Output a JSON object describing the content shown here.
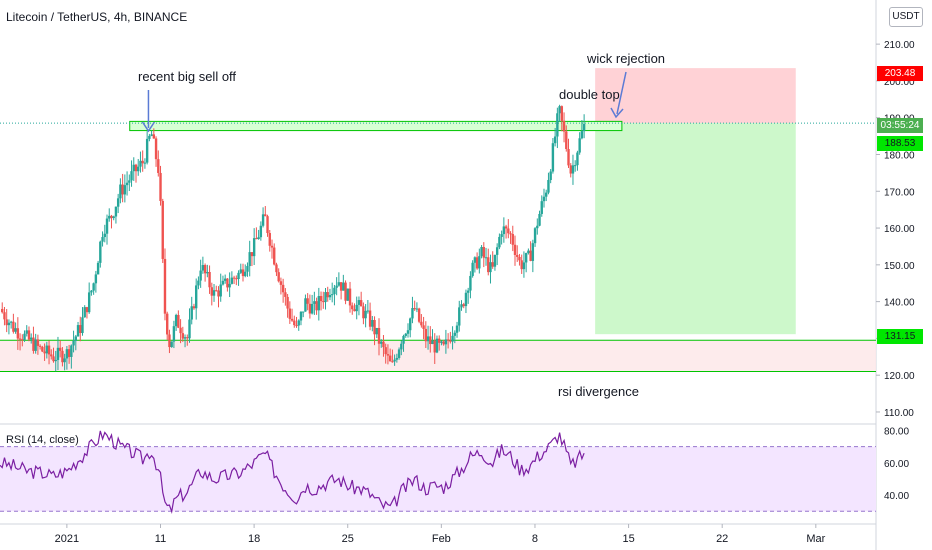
{
  "header": {
    "symbol_title": "Litecoin / TetherUS, 4h, BINANCE",
    "currency_button": "USDT"
  },
  "annotations": {
    "recent_sell_off": "recent big sell off",
    "wick_rejection": "wick rejection",
    "double_top": "double top",
    "rsi_divergence": "rsi divergence"
  },
  "rsi_panel": {
    "label": "RSI (14, close)"
  },
  "price_badges": {
    "stop": "203.48",
    "countdown": "03:55:24",
    "entry": "188.53",
    "target": "131.15"
  },
  "colors": {
    "up": "#26a69a",
    "down": "#ef5350",
    "zone_line": "#00c400",
    "stop_zone": "#ffcdd2",
    "target_zone": "#c8f7c5",
    "rsi_line": "#7b1fa2",
    "rsi_band": "#f3e5ff"
  },
  "chart_data": {
    "type": "candlestick",
    "title": "Litecoin / TetherUS, 4h, BINANCE",
    "y_axis": {
      "min": 107,
      "max": 222,
      "ticks": [
        "110.00",
        "120.00",
        "130.00",
        "140.00",
        "150.00",
        "160.00",
        "170.00",
        "180.00",
        "190.00",
        "200.00",
        "210.00"
      ]
    },
    "x_axis": {
      "ticks": [
        {
          "label": "2021",
          "x": 4.0
        },
        {
          "label": "11",
          "x": 11.0
        },
        {
          "label": "18",
          "x": 18.0
        },
        {
          "label": "25",
          "x": 25.0
        },
        {
          "label": "Feb",
          "x": 32.0
        },
        {
          "label": "8",
          "x": 39.0
        },
        {
          "label": "15",
          "x": 46.0
        },
        {
          "label": "22",
          "x": 53.0
        },
        {
          "label": "Mar",
          "x": 60.0
        }
      ],
      "range": [
        -1.0,
        64.5
      ]
    },
    "price_path": [
      [
        -1.0,
        138
      ],
      [
        0.0,
        133
      ],
      [
        1.0,
        130
      ],
      [
        2.0,
        127
      ],
      [
        3.0,
        125
      ],
      [
        4.0,
        126
      ],
      [
        5.0,
        133
      ],
      [
        6.0,
        145
      ],
      [
        6.7,
        160
      ],
      [
        7.3,
        163
      ],
      [
        8.0,
        170
      ],
      [
        9.0,
        175
      ],
      [
        9.7,
        178
      ],
      [
        10.3,
        186
      ],
      [
        10.9,
        175
      ],
      [
        11.3,
        138
      ],
      [
        11.7,
        128
      ],
      [
        12.2,
        135
      ],
      [
        13.0,
        130
      ],
      [
        14.0,
        150
      ],
      [
        15.0,
        142
      ],
      [
        16.0,
        145
      ],
      [
        17.0,
        148
      ],
      [
        18.0,
        155
      ],
      [
        18.8,
        163
      ],
      [
        19.5,
        152
      ],
      [
        20.0,
        145
      ],
      [
        20.6,
        137
      ],
      [
        21.2,
        132
      ],
      [
        21.8,
        140
      ],
      [
        22.5,
        138
      ],
      [
        23.5,
        143
      ],
      [
        24.3,
        146
      ],
      [
        25.2,
        140
      ],
      [
        26.0,
        138
      ],
      [
        26.8,
        134
      ],
      [
        27.5,
        128
      ],
      [
        28.3,
        122
      ],
      [
        29.0,
        130
      ],
      [
        30.0,
        138
      ],
      [
        30.8,
        130
      ],
      [
        31.5,
        128
      ],
      [
        32.2,
        127
      ],
      [
        32.8,
        132
      ],
      [
        33.5,
        138
      ],
      [
        34.2,
        148
      ],
      [
        35.0,
        153
      ],
      [
        35.8,
        148
      ],
      [
        36.5,
        160
      ],
      [
        37.2,
        158
      ],
      [
        37.9,
        150
      ],
      [
        38.6,
        152
      ],
      [
        39.2,
        162
      ],
      [
        39.8,
        170
      ],
      [
        40.3,
        180
      ],
      [
        40.8,
        192
      ],
      [
        41.2,
        185
      ],
      [
        41.7,
        175
      ],
      [
        42.2,
        182
      ],
      [
        42.7,
        188
      ]
    ],
    "horizontal_levels": [
      {
        "name": "resistance-zone",
        "low": 186.5,
        "high": 189.0,
        "from_x": 8.7,
        "to_x": 45.5
      },
      {
        "name": "support-line-upper",
        "value": 129.5
      },
      {
        "name": "support-line-lower",
        "value": 121.0
      }
    ],
    "trade_zones": [
      {
        "name": "stop-loss",
        "from_x": 43.5,
        "to_x": 58.5,
        "low": 188.53,
        "high": 203.48
      },
      {
        "name": "take-profit",
        "from_x": 43.5,
        "to_x": 58.5,
        "low": 131.15,
        "high": 188.53
      }
    ],
    "rsi": {
      "y_axis": {
        "min": 24,
        "max": 84,
        "ticks": [
          "40.00",
          "60.00",
          "80.00"
        ]
      },
      "bands": [
        30,
        70
      ],
      "path": [
        [
          -1.0,
          60
        ],
        [
          0.0,
          58
        ],
        [
          1.0,
          55
        ],
        [
          2.0,
          54
        ],
        [
          3.0,
          52
        ],
        [
          4.0,
          55
        ],
        [
          5.0,
          63
        ],
        [
          6.0,
          72
        ],
        [
          6.7,
          78
        ],
        [
          7.3,
          75
        ],
        [
          8.0,
          70
        ],
        [
          9.0,
          66
        ],
        [
          9.7,
          62
        ],
        [
          10.3,
          68
        ],
        [
          10.9,
          55
        ],
        [
          11.3,
          35
        ],
        [
          11.7,
          30
        ],
        [
          12.2,
          38
        ],
        [
          13.0,
          42
        ],
        [
          14.0,
          55
        ],
        [
          15.0,
          50
        ],
        [
          16.0,
          52
        ],
        [
          17.0,
          54
        ],
        [
          18.0,
          60
        ],
        [
          18.8,
          66
        ],
        [
          19.5,
          55
        ],
        [
          20.0,
          48
        ],
        [
          20.6,
          42
        ],
        [
          21.2,
          38
        ],
        [
          21.8,
          46
        ],
        [
          22.5,
          44
        ],
        [
          23.5,
          48
        ],
        [
          24.3,
          50
        ],
        [
          25.2,
          45
        ],
        [
          26.0,
          44
        ],
        [
          26.8,
          40
        ],
        [
          27.5,
          34
        ],
        [
          28.3,
          32
        ],
        [
          29.0,
          42
        ],
        [
          30.0,
          50
        ],
        [
          30.8,
          44
        ],
        [
          31.5,
          46
        ],
        [
          32.2,
          45
        ],
        [
          32.8,
          50
        ],
        [
          33.5,
          56
        ],
        [
          34.2,
          64
        ],
        [
          35.0,
          67
        ],
        [
          35.8,
          60
        ],
        [
          36.5,
          68
        ],
        [
          37.2,
          64
        ],
        [
          37.9,
          56
        ],
        [
          38.6,
          58
        ],
        [
          39.2,
          64
        ],
        [
          39.8,
          68
        ],
        [
          40.3,
          72
        ],
        [
          40.8,
          78
        ],
        [
          41.2,
          70
        ],
        [
          41.7,
          58
        ],
        [
          42.2,
          62
        ],
        [
          42.7,
          66
        ]
      ]
    }
  }
}
